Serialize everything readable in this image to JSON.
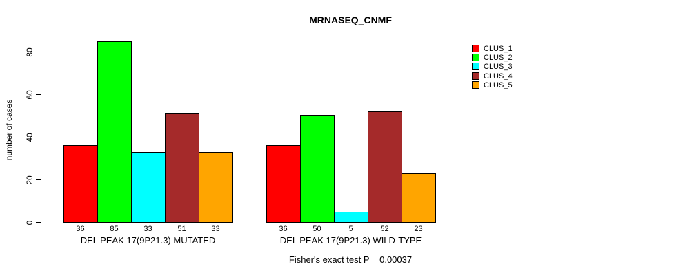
{
  "chart_data": {
    "type": "bar",
    "title": "MRNASEQ_CNMF",
    "xlabel": "",
    "ylabel": "number of cases",
    "ylim": [
      0,
      85
    ],
    "yticks": [
      0,
      20,
      40,
      60,
      80
    ],
    "grid": false,
    "legend_position": "right-outside",
    "categories": [
      "DEL PEAK 17(9P21.3) MUTATED",
      "DEL PEAK 17(9P21.3) WILD-TYPE"
    ],
    "series": [
      {
        "name": "CLUS_1",
        "color": "#FF0000",
        "values": [
          36,
          36
        ]
      },
      {
        "name": "CLUS_2",
        "color": "#00FF00",
        "values": [
          85,
          50
        ]
      },
      {
        "name": "CLUS_3",
        "color": "#00FFFF",
        "values": [
          33,
          5
        ]
      },
      {
        "name": "CLUS_4",
        "color": "#A52A2A",
        "values": [
          51,
          52
        ]
      },
      {
        "name": "CLUS_5",
        "color": "#FFA500",
        "values": [
          33,
          23
        ]
      }
    ],
    "bar_value_labels": [
      [
        36,
        85,
        33,
        51,
        33
      ],
      [
        36,
        50,
        5,
        52,
        23
      ]
    ],
    "annotation": "Fisher's exact test P = 0.00037"
  }
}
